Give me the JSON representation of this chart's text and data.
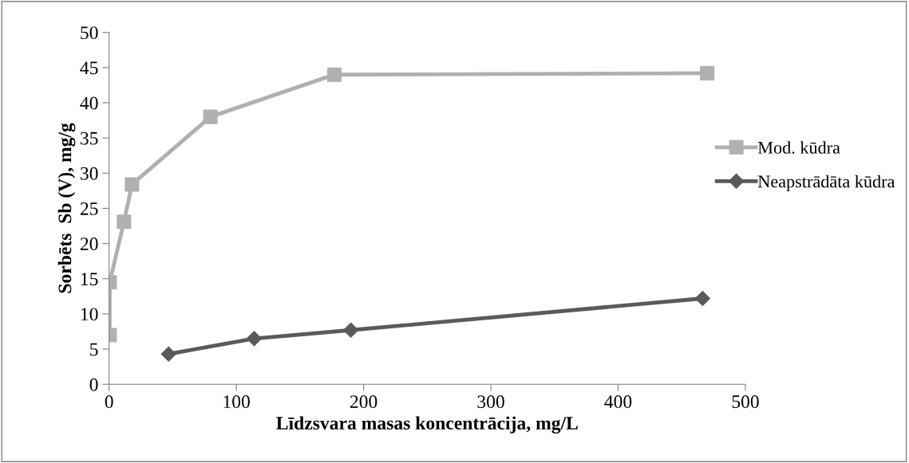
{
  "chart_data": {
    "type": "line",
    "xlabel": "Līdzsvara masas koncentrācija, mg/L",
    "ylabel": "Sorbēts  Sb (V), mg/g",
    "xlim": [
      0,
      500
    ],
    "xticks": [
      0,
      100,
      200,
      300,
      400,
      500
    ],
    "ylim": [
      0,
      50
    ],
    "yticks": [
      0,
      5,
      10,
      15,
      20,
      25,
      30,
      35,
      40,
      45,
      50
    ],
    "grid": false,
    "legend": "right",
    "line_style": "solid",
    "series": [
      {
        "name": "Mod. kūdra",
        "color": "#b0b0b0",
        "marker": "square",
        "x": [
          0.5,
          0.5,
          11.7,
          18,
          79.6,
          177,
          470
        ],
        "values": [
          7.0,
          14.5,
          23.1,
          28.4,
          38.0,
          44.0,
          44.2
        ]
      },
      {
        "name": "Neapstrādāta kūdra",
        "color": "#5a5a5a",
        "marker": "diamond",
        "x": [
          46.8,
          114,
          190,
          466.4
        ],
        "values": [
          4.3,
          6.5,
          7.7,
          12.2
        ]
      }
    ]
  }
}
